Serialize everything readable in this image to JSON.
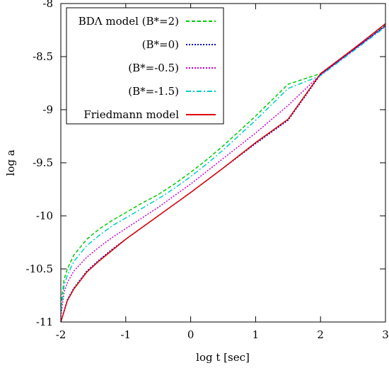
{
  "chart_data": {
    "type": "line",
    "xlabel": "log t [sec]",
    "ylabel": "log a",
    "xlim": [
      -2,
      3
    ],
    "ylim": [
      -11,
      -8
    ],
    "xticks": [
      -2,
      -1,
      0,
      1,
      2,
      3
    ],
    "yticks": [
      -11,
      -10.5,
      -10,
      -9.5,
      -9,
      -8.5,
      -8
    ],
    "xtick_labels": [
      "-2",
      "-1",
      "0",
      "1",
      "2",
      "3"
    ],
    "ytick_labels": [
      "-11",
      "-10.5",
      "-10",
      "-9.5",
      "-9",
      "-8.5",
      "-8"
    ],
    "legend_position": "top-left",
    "grid": false,
    "series": [
      {
        "name": "BDΛ model (B*=2)",
        "color": "#00cc00",
        "dash": "dashed",
        "x": [
          -2,
          -1.95,
          -1.9,
          -1.8,
          -1.6,
          -1.4,
          -1.2,
          -1,
          -0.75,
          -0.5,
          -0.25,
          0,
          0.25,
          0.5,
          0.75,
          1,
          1.5,
          2,
          2.5,
          3
        ],
        "y": [
          -10.85,
          -10.6,
          -10.5,
          -10.37,
          -10.22,
          -10.12,
          -10.04,
          -9.97,
          -9.88,
          -9.8,
          -9.7,
          -9.59,
          -9.47,
          -9.34,
          -9.2,
          -9.06,
          -8.76,
          -8.66,
          -8.43,
          -8.2
        ]
      },
      {
        "name": "(B*=0)",
        "color": "#0000cc",
        "dash": "dotted",
        "x": [
          -2,
          -1.9,
          -1.8,
          -1.6,
          -1.4,
          -1.2,
          -1,
          -0.5,
          0,
          0.5,
          1,
          1.5,
          2,
          2.5,
          3
        ],
        "y": [
          -11,
          -10.79,
          -10.68,
          -10.52,
          -10.41,
          -10.31,
          -10.22,
          -10,
          -9.78,
          -9.55,
          -9.32,
          -9.1,
          -8.67,
          -8.44,
          -8.21
        ]
      },
      {
        "name": "(B*=-0.5)",
        "color": "#cc00cc",
        "dash": "dotted",
        "x": [
          -2,
          -1.95,
          -1.9,
          -1.8,
          -1.6,
          -1.4,
          -1.2,
          -1,
          -0.75,
          -0.5,
          -0.25,
          0,
          0.5,
          1,
          1.5,
          2,
          2.5,
          3
        ],
        "y": [
          -10.95,
          -10.72,
          -10.63,
          -10.52,
          -10.39,
          -10.29,
          -10.2,
          -10.12,
          -10.02,
          -9.92,
          -9.81,
          -9.7,
          -9.46,
          -9.22,
          -8.96,
          -8.67,
          -8.44,
          -8.21
        ]
      },
      {
        "name": "(B*=-1.5)",
        "color": "#00cccc",
        "dash": "dash-dot",
        "x": [
          -2,
          -1.95,
          -1.9,
          -1.8,
          -1.6,
          -1.4,
          -1.2,
          -1,
          -0.75,
          -0.5,
          -0.25,
          0,
          0.25,
          0.5,
          0.75,
          1,
          1.5,
          2,
          2.5,
          3
        ],
        "y": [
          -10.9,
          -10.66,
          -10.56,
          -10.43,
          -10.28,
          -10.18,
          -10.09,
          -10.02,
          -9.93,
          -9.84,
          -9.74,
          -9.63,
          -9.51,
          -9.38,
          -9.24,
          -9.1,
          -8.8,
          -8.68,
          -8.45,
          -8.22
        ]
      },
      {
        "name": "Friedmann model",
        "color": "#dd0000",
        "dash": "solid",
        "x": [
          -2,
          -1.9,
          -1.8,
          -1.6,
          -1.4,
          -1.2,
          -1,
          -0.5,
          0,
          0.5,
          1,
          1.5,
          2,
          2.5,
          3
        ],
        "y": [
          -11,
          -10.8,
          -10.69,
          -10.53,
          -10.42,
          -10.32,
          -10.22,
          -10,
          -9.78,
          -9.55,
          -9.31,
          -9.09,
          -8.66,
          -8.43,
          -8.19
        ]
      }
    ]
  }
}
